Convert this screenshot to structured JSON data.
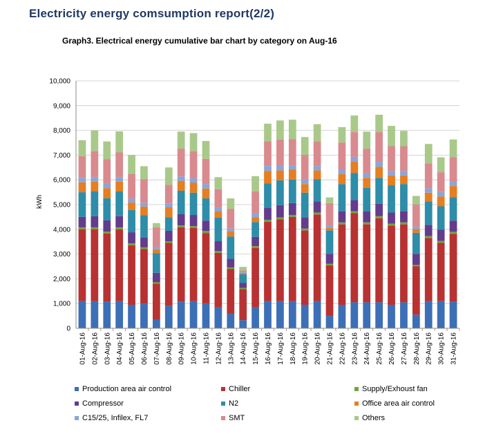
{
  "header": {
    "report_title": "Electricity energy comsumption report(2/2)",
    "graph_title": "Graph3.  Electrical energy cumulative bar chart  by category on Aug-16"
  },
  "chart_data": {
    "type": "bar",
    "stacked": true,
    "ylabel": "kWh",
    "ylim": [
      0,
      10000
    ],
    "yticks": [
      0,
      1000,
      2000,
      3000,
      4000,
      5000,
      6000,
      7000,
      8000,
      9000,
      10000
    ],
    "ytick_labels": [
      "0",
      "1,000",
      "2,000",
      "3,000",
      "4,000",
      "5,000",
      "6,000",
      "7,000",
      "8,000",
      "9,000",
      "10,000"
    ],
    "grid": true,
    "legend_position": "bottom",
    "categories": [
      "01-Aug-16",
      "02-Aug-16",
      "03-Aug-16",
      "04-Aug-16",
      "05-Aug-16",
      "06-Aug-16",
      "07-Aug-16",
      "08-Aug-16",
      "09-Aug-16",
      "10-Aug-16",
      "11-Aug-16",
      "12-Aug-16",
      "13-Aug-16",
      "14-Aug-16",
      "15-Aug-16",
      "16-Aug-16",
      "17-Aug-16",
      "18-Aug-16",
      "19-Aug-16",
      "20-Aug-16",
      "21-Aug-16",
      "22-Aug-16",
      "23-Aug-16",
      "24-Aug-16",
      "25-Aug-16",
      "26-Aug-16",
      "27-Aug-16",
      "28-Aug-16",
      "29-Aug-16",
      "30-Aug-16",
      "31-Aug-16"
    ],
    "series": [
      {
        "name": "Production area air control",
        "color": "#3c6fb6",
        "values": [
          1100,
          1100,
          1080,
          1100,
          950,
          1000,
          350,
          900,
          1080,
          1100,
          1000,
          850,
          600,
          330,
          850,
          1100,
          1100,
          1100,
          950,
          1100,
          500,
          950,
          1050,
          1050,
          1050,
          950,
          1050,
          550,
          1100,
          1100,
          1070
        ]
      },
      {
        "name": "Chiller",
        "color": "#b83232",
        "values": [
          2900,
          2900,
          2750,
          2900,
          2400,
          2200,
          1450,
          2550,
          3000,
          2950,
          2850,
          2200,
          1800,
          1250,
          2400,
          3200,
          3300,
          3400,
          3000,
          3500,
          2050,
          3250,
          3600,
          3150,
          3400,
          3200,
          3150,
          1950,
          2550,
          2350,
          2750
        ]
      },
      {
        "name": "Supply/Exhoust fan",
        "color": "#72a43b",
        "values": [
          80,
          80,
          80,
          80,
          80,
          70,
          60,
          70,
          80,
          80,
          80,
          70,
          60,
          50,
          70,
          80,
          80,
          80,
          80,
          80,
          60,
          80,
          80,
          80,
          80,
          80,
          80,
          60,
          80,
          80,
          80
        ]
      },
      {
        "name": "Compressor",
        "color": "#643c8c",
        "values": [
          420,
          450,
          450,
          450,
          450,
          400,
          380,
          420,
          450,
          450,
          420,
          400,
          350,
          200,
          370,
          480,
          500,
          480,
          450,
          450,
          400,
          450,
          450,
          450,
          500,
          450,
          450,
          450,
          450,
          450,
          450
        ]
      },
      {
        "name": "N2",
        "color": "#2e8da8",
        "values": [
          1000,
          1000,
          900,
          1000,
          900,
          900,
          800,
          550,
          950,
          900,
          900,
          950,
          900,
          350,
          600,
          1000,
          1000,
          950,
          1000,
          900,
          950,
          1100,
          1100,
          950,
          1050,
          1100,
          1100,
          850,
          950,
          950,
          950
        ]
      },
      {
        "name": "Office area air control",
        "color": "#e67e22",
        "values": [
          400,
          400,
          400,
          400,
          300,
          350,
          150,
          400,
          400,
          400,
          400,
          250,
          200,
          60,
          200,
          500,
          400,
          400,
          350,
          350,
          100,
          400,
          450,
          400,
          450,
          400,
          350,
          150,
          350,
          400,
          450
        ]
      },
      {
        "name": "C15/25, Infilex, FL7",
        "color": "#8aa6d6",
        "values": [
          180,
          180,
          180,
          180,
          160,
          160,
          90,
          160,
          180,
          180,
          180,
          150,
          120,
          50,
          150,
          200,
          200,
          180,
          180,
          180,
          100,
          180,
          200,
          180,
          200,
          180,
          180,
          100,
          180,
          180,
          170
        ]
      },
      {
        "name": "SMT",
        "color": "#d98a8f",
        "values": [
          880,
          1050,
          1000,
          1000,
          1000,
          950,
          800,
          750,
          1120,
          1100,
          1020,
          750,
          800,
          50,
          900,
          1000,
          1050,
          1050,
          1000,
          1000,
          900,
          1100,
          1000,
          1000,
          1200,
          1000,
          1000,
          900,
          1000,
          800,
          1000
        ]
      },
      {
        "name": "Others",
        "color": "#a9c98a",
        "values": [
          640,
          840,
          710,
          850,
          760,
          520,
          170,
          700,
          690,
          730,
          720,
          490,
          420,
          140,
          610,
          710,
          770,
          790,
          720,
          690,
          230,
          620,
          670,
          690,
          700,
          820,
          620,
          340,
          790,
          600,
          710
        ]
      }
    ]
  }
}
